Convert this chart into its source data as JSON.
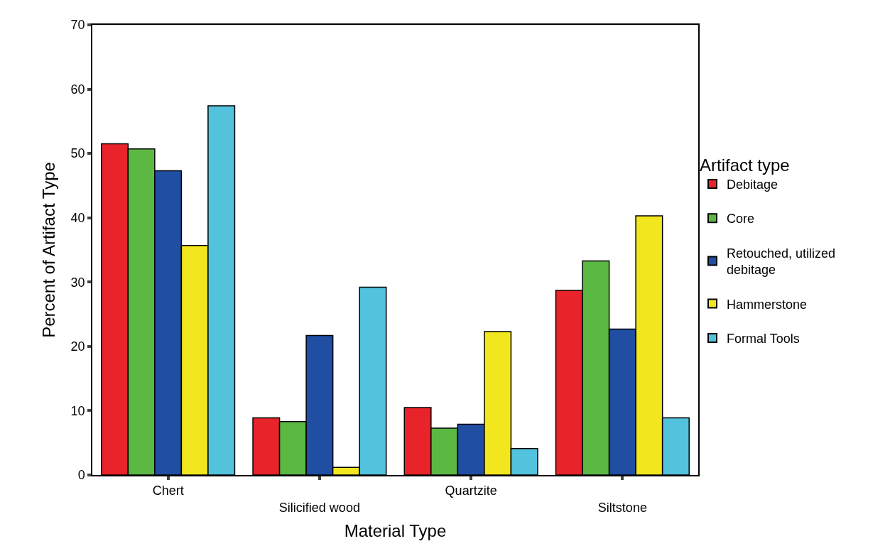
{
  "chart_data": {
    "type": "bar",
    "xlabel": "Material Type",
    "ylabel": "Percent of Artifact Type",
    "legend_title": "Artifact type",
    "categories": [
      "Chert",
      "Silicified wood",
      "Quartzite",
      "Siltstone"
    ],
    "series": [
      {
        "name": "Debitage",
        "color": "#e8242a",
        "values": [
          51.5,
          8.9,
          10.5,
          28.7
        ]
      },
      {
        "name": "Core",
        "color": "#5bb843",
        "values": [
          50.7,
          8.3,
          7.3,
          33.3
        ]
      },
      {
        "name": "Retouched, utilized debitage",
        "color": "#1f4ea3",
        "values": [
          47.3,
          21.7,
          7.9,
          22.7
        ]
      },
      {
        "name": "Hammerstone",
        "color": "#f2e61f",
        "values": [
          35.7,
          1.2,
          22.3,
          40.3
        ]
      },
      {
        "name": "Formal Tools",
        "color": "#53c2dc",
        "values": [
          57.4,
          29.2,
          4.1,
          8.9
        ]
      }
    ],
    "ylim": [
      0,
      70
    ],
    "yticks": [
      0,
      10,
      20,
      30,
      40,
      50,
      60,
      70
    ],
    "legend": "right"
  }
}
